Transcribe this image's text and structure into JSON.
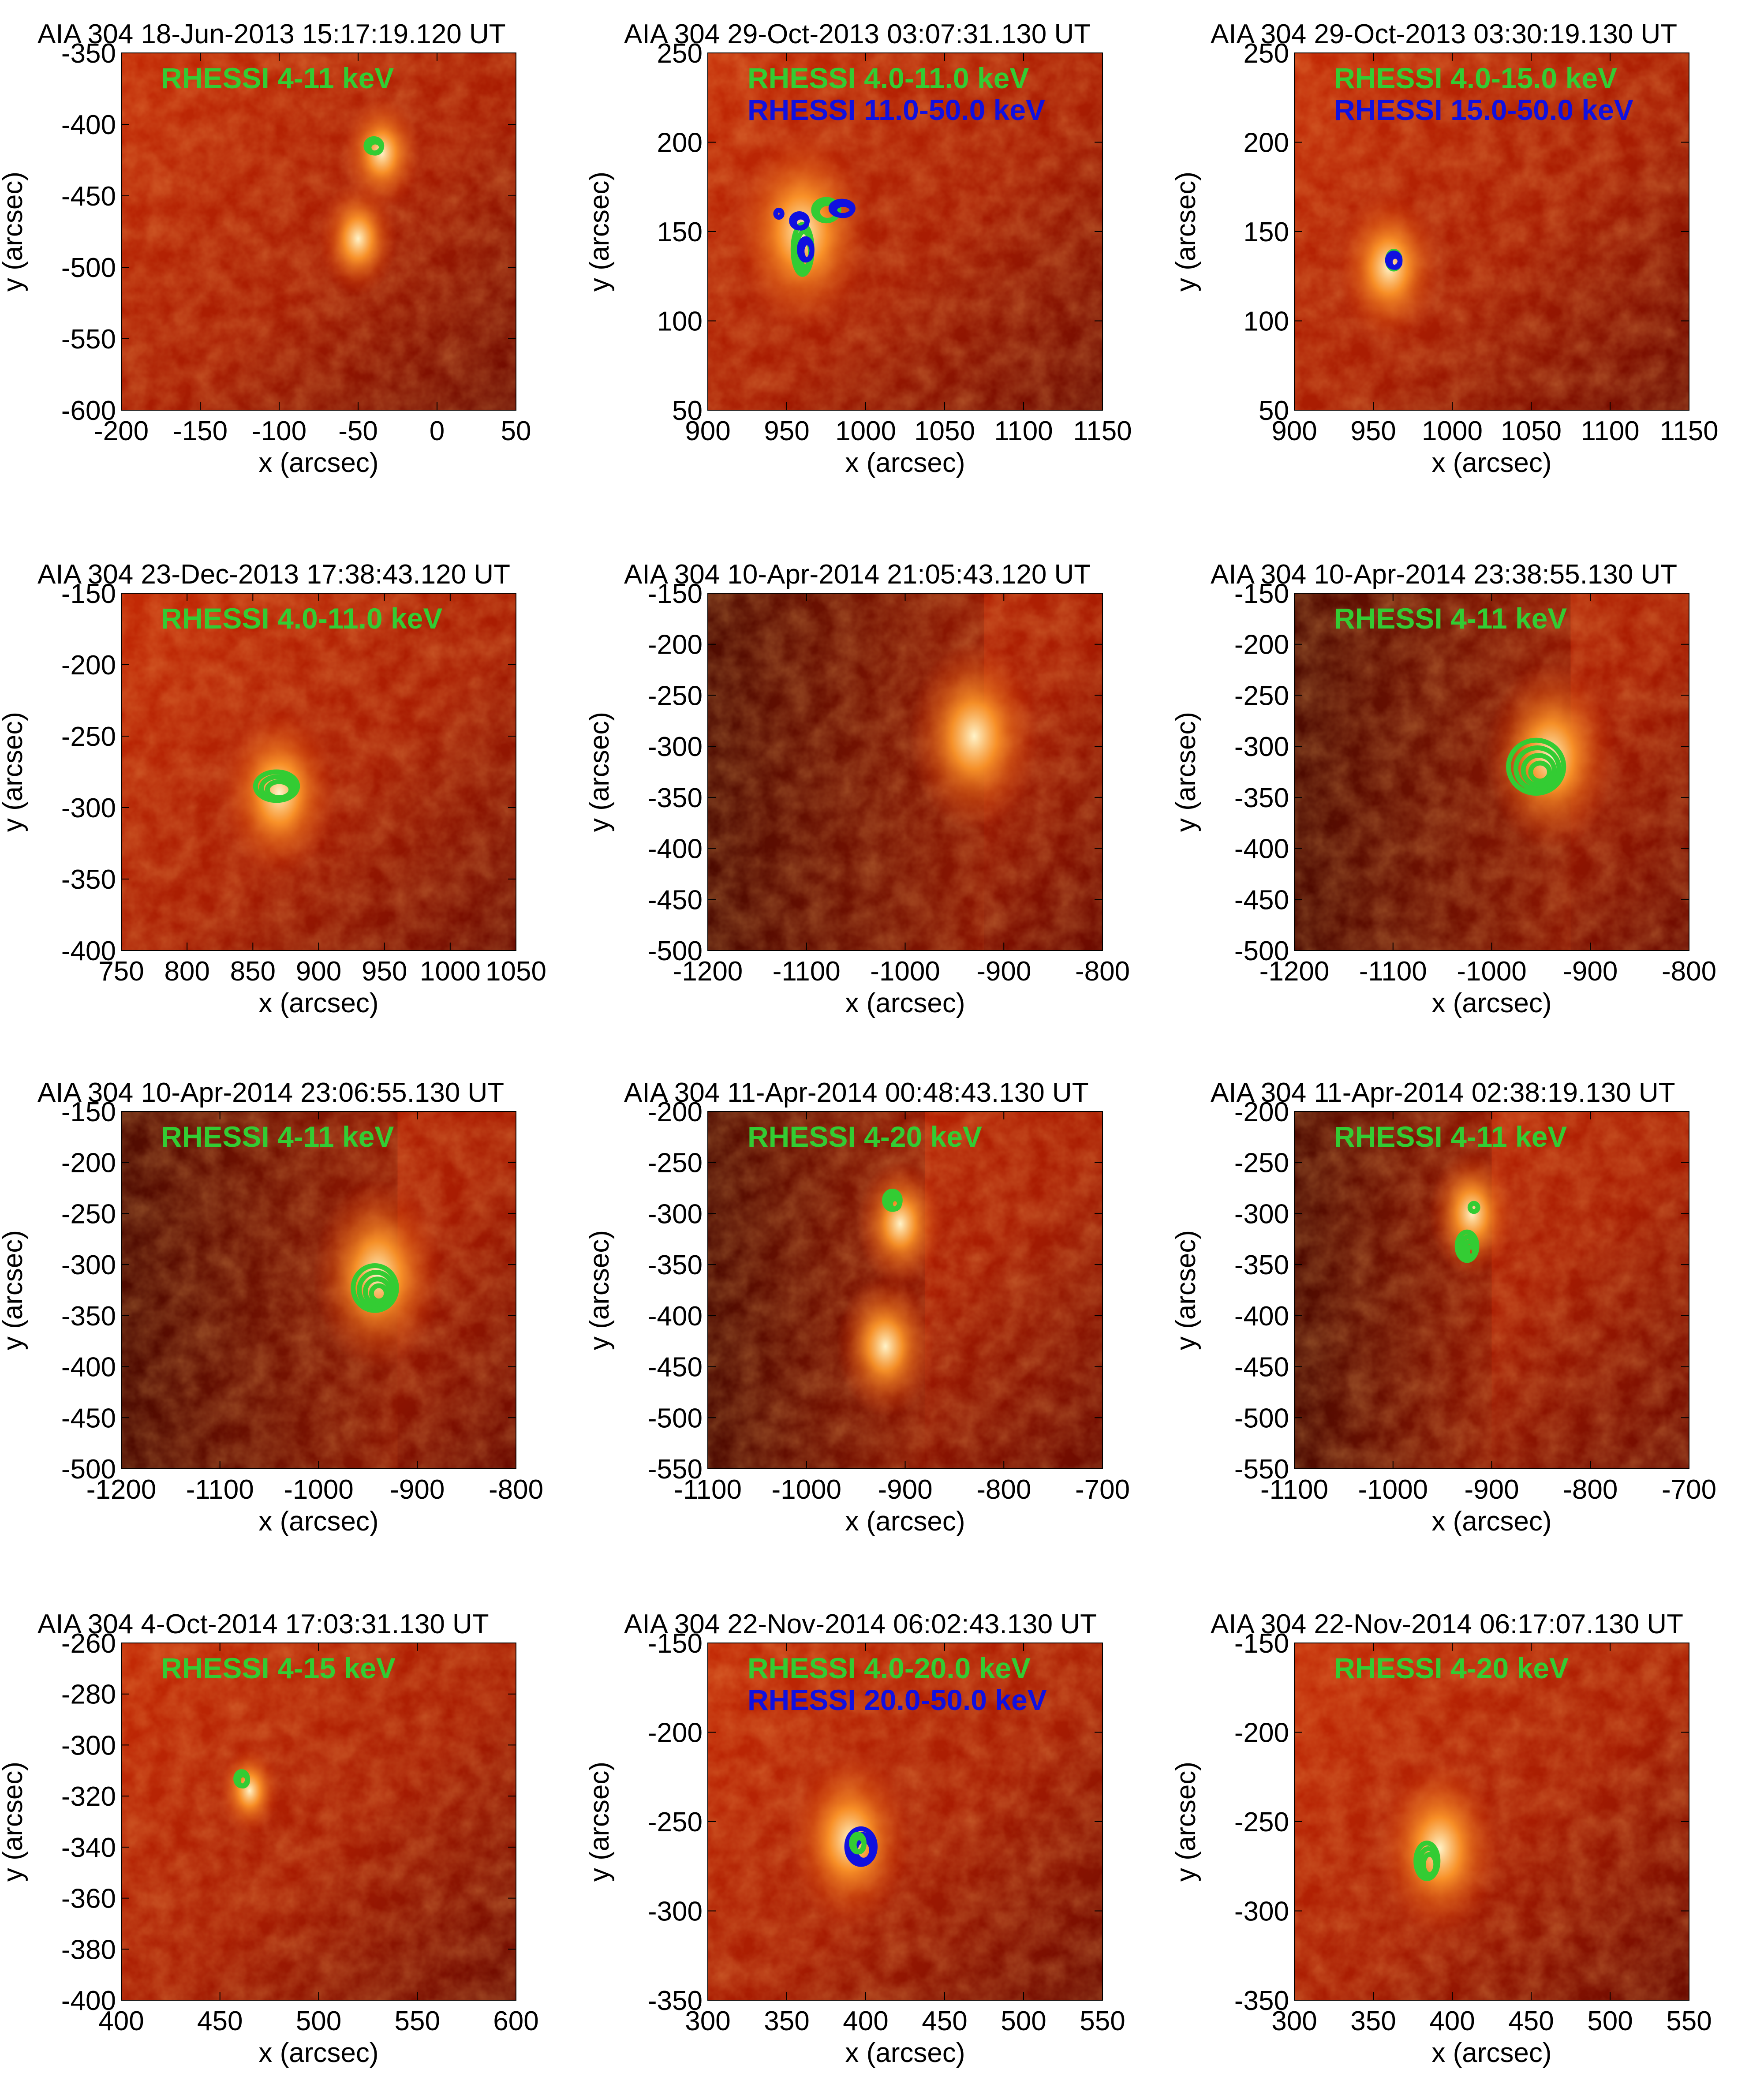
{
  "colors": {
    "green": "#33cc33",
    "blue": "#1010e0",
    "image_dark": "#6a0a00",
    "image_mid": "#c42a05",
    "image_bright": "#ff9a2a",
    "image_white": "#fff3c8"
  },
  "panels": [
    {
      "title": "AIA 304 18-Jun-2013 15:17:19.120 UT",
      "xlabel": "x (arcsec)",
      "ylabel": "y (arcsec)",
      "xlim": [
        -200,
        50
      ],
      "ylim": [
        -600,
        -350
      ],
      "xticks": [
        "-200",
        "-150",
        "-100",
        "-50",
        "0",
        "50"
      ],
      "yticks": [
        "-600",
        "-550",
        "-500",
        "-450",
        "-400",
        "-350"
      ],
      "legend": [
        {
          "text": "RHESSI 4-11 keV",
          "color": "green"
        }
      ],
      "contours": [
        {
          "color": "green",
          "x": -40,
          "y": -415,
          "rx": 5,
          "ry": 5,
          "levels": 2
        }
      ],
      "glow": [
        {
          "x": -35,
          "y": -420,
          "r": 25
        },
        {
          "x": -50,
          "y": -480,
          "r": 25
        }
      ]
    },
    {
      "title": "AIA 304 29-Oct-2013 03:07:31.130 UT",
      "xlabel": "x (arcsec)",
      "ylabel": "y (arcsec)",
      "xlim": [
        900,
        1150
      ],
      "ylim": [
        50,
        250
      ],
      "xticks": [
        "900",
        "950",
        "1000",
        "1050",
        "1100",
        "1150"
      ],
      "yticks": [
        "50",
        "100",
        "150",
        "200",
        "250"
      ],
      "legend": [
        {
          "text": "RHESSI 4.0-11.0 keV",
          "color": "green"
        },
        {
          "text": "RHESSI 11.0-50.0 keV",
          "color": "blue"
        }
      ],
      "contours": [
        {
          "color": "green",
          "x": 960,
          "y": 140,
          "rx": 6,
          "ry": 14,
          "levels": 3
        },
        {
          "color": "green",
          "x": 975,
          "y": 162,
          "rx": 8,
          "ry": 6,
          "levels": 2
        },
        {
          "color": "blue",
          "x": 958,
          "y": 156,
          "rx": 5,
          "ry": 4,
          "levels": 2
        },
        {
          "color": "blue",
          "x": 962,
          "y": 140,
          "rx": 4,
          "ry": 6,
          "levels": 2
        },
        {
          "color": "blue",
          "x": 985,
          "y": 163,
          "rx": 7,
          "ry": 4,
          "levels": 2
        },
        {
          "color": "blue",
          "x": 945,
          "y": 160,
          "rx": 2,
          "ry": 2,
          "levels": 1
        }
      ],
      "glow": [
        {
          "x": 960,
          "y": 150,
          "r": 40
        }
      ]
    },
    {
      "title": "AIA 304 29-Oct-2013 03:30:19.130 UT",
      "xlabel": "x (arcsec)",
      "ylabel": "y (arcsec)",
      "xlim": [
        900,
        1150
      ],
      "ylim": [
        50,
        250
      ],
      "xticks": [
        "900",
        "950",
        "1000",
        "1050",
        "1100",
        "1150"
      ],
      "yticks": [
        "50",
        "100",
        "150",
        "200",
        "250"
      ],
      "legend": [
        {
          "text": "RHESSI 4.0-15.0 keV",
          "color": "green"
        },
        {
          "text": "RHESSI 15.0-50.0 keV",
          "color": "blue"
        }
      ],
      "contours": [
        {
          "color": "green",
          "x": 963,
          "y": 134,
          "rx": 4,
          "ry": 5,
          "levels": 1
        },
        {
          "color": "blue",
          "x": 963,
          "y": 134,
          "rx": 4,
          "ry": 4,
          "levels": 2
        }
      ],
      "glow": [
        {
          "x": 960,
          "y": 130,
          "r": 30
        }
      ]
    },
    {
      "title": "AIA 304 23-Dec-2013 17:38:43.120 UT",
      "xlabel": "x (arcsec)",
      "ylabel": "y (arcsec)",
      "xlim": [
        750,
        1050
      ],
      "ylim": [
        -400,
        -150
      ],
      "xticks": [
        "750",
        "800",
        "850",
        "900",
        "950",
        "1000",
        "1050"
      ],
      "yticks": [
        "-400",
        "-350",
        "-300",
        "-250",
        "-200",
        "-150"
      ],
      "legend": [
        {
          "text": "RHESSI 4.0-11.0 keV",
          "color": "green"
        }
      ],
      "contours": [
        {
          "color": "green",
          "x": 868,
          "y": -285,
          "rx": 16,
          "ry": 10,
          "levels": 3
        }
      ],
      "glow": [
        {
          "x": 870,
          "y": -290,
          "r": 40
        }
      ]
    },
    {
      "title": "AIA 304 10-Apr-2014 21:05:43.120 UT",
      "xlabel": "x (arcsec)",
      "ylabel": "y (arcsec)",
      "xlim": [
        -1200,
        -800
      ],
      "ylim": [
        -500,
        -150
      ],
      "xticks": [
        "-1200",
        "-1100",
        "-1000",
        "-900",
        "-800"
      ],
      "yticks": [
        "-500",
        "-450",
        "-400",
        "-350",
        "-300",
        "-250",
        "-200",
        "-150"
      ],
      "legend": [],
      "contours": [],
      "glow": [
        {
          "x": -930,
          "y": -290,
          "r": 60
        }
      ],
      "limb_x": -920
    },
    {
      "title": "AIA 304 10-Apr-2014 23:38:55.130 UT",
      "xlabel": "x (arcsec)",
      "ylabel": "y (arcsec)",
      "xlim": [
        -1200,
        -800
      ],
      "ylim": [
        -500,
        -150
      ],
      "xticks": [
        "-1200",
        "-1100",
        "-1000",
        "-900",
        "-800"
      ],
      "yticks": [
        "-500",
        "-450",
        "-400",
        "-350",
        "-300",
        "-250",
        "-200",
        "-150"
      ],
      "legend": [
        {
          "text": "RHESSI 4-11 keV",
          "color": "green"
        }
      ],
      "contours": [
        {
          "color": "green",
          "x": -955,
          "y": -320,
          "rx": 28,
          "ry": 26,
          "levels": 4
        }
      ],
      "glow": [
        {
          "x": -940,
          "y": -310,
          "r": 60
        }
      ],
      "limb_x": -920
    },
    {
      "title": "AIA 304 10-Apr-2014 23:06:55.130 UT",
      "xlabel": "x (arcsec)",
      "ylabel": "y (arcsec)",
      "xlim": [
        -1200,
        -800
      ],
      "ylim": [
        -500,
        -150
      ],
      "xticks": [
        "-1200",
        "-1100",
        "-1000",
        "-900",
        "-800"
      ],
      "yticks": [
        "-500",
        "-450",
        "-400",
        "-350",
        "-300",
        "-250",
        "-200",
        "-150"
      ],
      "legend": [
        {
          "text": "RHESSI 4-11 keV",
          "color": "green"
        }
      ],
      "contours": [
        {
          "color": "green",
          "x": -943,
          "y": -323,
          "rx": 22,
          "ry": 22,
          "levels": 4
        }
      ],
      "glow": [
        {
          "x": -940,
          "y": -310,
          "r": 60
        }
      ],
      "limb_x": -920
    },
    {
      "title": "AIA 304 11-Apr-2014 00:48:43.130 UT",
      "xlabel": "x (arcsec)",
      "ylabel": "y (arcsec)",
      "xlim": [
        -1100,
        -700
      ],
      "ylim": [
        -550,
        -200
      ],
      "xticks": [
        "-1100",
        "-1000",
        "-900",
        "-800",
        "-700"
      ],
      "yticks": [
        "-550",
        "-500",
        "-450",
        "-400",
        "-350",
        "-300",
        "-250",
        "-200"
      ],
      "legend": [
        {
          "text": "RHESSI 4-20 keV",
          "color": "green"
        }
      ],
      "contours": [
        {
          "color": "green",
          "x": -913,
          "y": -287,
          "rx": 8,
          "ry": 9,
          "levels": 3
        }
      ],
      "glow": [
        {
          "x": -905,
          "y": -310,
          "r": 40
        },
        {
          "x": -920,
          "y": -430,
          "r": 45
        }
      ],
      "limb_x": -880
    },
    {
      "title": "AIA 304 11-Apr-2014 02:38:19.130 UT",
      "xlabel": "x (arcsec)",
      "ylabel": "y (arcsec)",
      "xlim": [
        -1100,
        -700
      ],
      "ylim": [
        -550,
        -200
      ],
      "xticks": [
        "-1100",
        "-1000",
        "-900",
        "-800",
        "-700"
      ],
      "yticks": [
        "-550",
        "-500",
        "-450",
        "-400",
        "-350",
        "-300",
        "-250",
        "-200"
      ],
      "legend": [
        {
          "text": "RHESSI 4-11 keV",
          "color": "green"
        }
      ],
      "contours": [
        {
          "color": "green",
          "x": -925,
          "y": -332,
          "rx": 10,
          "ry": 14,
          "levels": 4
        },
        {
          "color": "green",
          "x": -918,
          "y": -294,
          "rx": 4,
          "ry": 4,
          "levels": 1
        }
      ],
      "glow": [
        {
          "x": -920,
          "y": -300,
          "r": 40
        }
      ],
      "limb_x": -900
    },
    {
      "title": "AIA 304  4-Oct-2014 17:03:31.130 UT",
      "xlabel": "x (arcsec)",
      "ylabel": "y (arcsec)",
      "xlim": [
        400,
        600
      ],
      "ylim": [
        -400,
        -250
      ],
      "xticks": [
        "400",
        "450",
        "500",
        "550",
        "600"
      ],
      "yticks": [
        "-400",
        "-380",
        "-360",
        "-340",
        "-320",
        "-300",
        "-280",
        "-260"
      ],
      "legend": [
        {
          "text": "RHESSI 4-15 keV",
          "color": "green"
        }
      ],
      "contours": [
        {
          "color": "green",
          "x": 461,
          "y": -307,
          "rx": 3,
          "ry": 3,
          "levels": 2
        }
      ],
      "glow": [
        {
          "x": 465,
          "y": -312,
          "r": 14
        }
      ]
    },
    {
      "title": "AIA 304 22-Nov-2014 06:02:43.130 UT",
      "xlabel": "x (arcsec)",
      "ylabel": "y (arcsec)",
      "xlim": [
        300,
        550
      ],
      "ylim": [
        -350,
        -150
      ],
      "xticks": [
        "300",
        "350",
        "400",
        "450",
        "500",
        "550"
      ],
      "yticks": [
        "-350",
        "-300",
        "-250",
        "-200",
        "-150"
      ],
      "legend": [
        {
          "text": "RHESSI 4.0-20.0 keV",
          "color": "green"
        },
        {
          "text": "RHESSI 20.0-50.0 keV",
          "color": "blue"
        }
      ],
      "contours": [
        {
          "color": "blue",
          "x": 397,
          "y": -264,
          "rx": 9,
          "ry": 10,
          "levels": 3
        },
        {
          "color": "green",
          "x": 395,
          "y": -262,
          "rx": 4,
          "ry": 5,
          "levels": 2
        }
      ],
      "glow": [
        {
          "x": 390,
          "y": -260,
          "r": 35
        }
      ]
    },
    {
      "title": "AIA 304 22-Nov-2014 06:17:07.130 UT",
      "xlabel": "x (arcsec)",
      "ylabel": "y (arcsec)",
      "xlim": [
        300,
        550
      ],
      "ylim": [
        -350,
        -150
      ],
      "xticks": [
        "300",
        "350",
        "400",
        "450",
        "500",
        "550"
      ],
      "yticks": [
        "-350",
        "-300",
        "-250",
        "-200",
        "-150"
      ],
      "legend": [
        {
          "text": "RHESSI 4-20 keV",
          "color": "green"
        }
      ],
      "contours": [
        {
          "color": "green",
          "x": 384,
          "y": -272,
          "rx": 7,
          "ry": 10,
          "levels": 3
        }
      ],
      "glow": [
        {
          "x": 392,
          "y": -265,
          "r": 35
        }
      ]
    }
  ]
}
